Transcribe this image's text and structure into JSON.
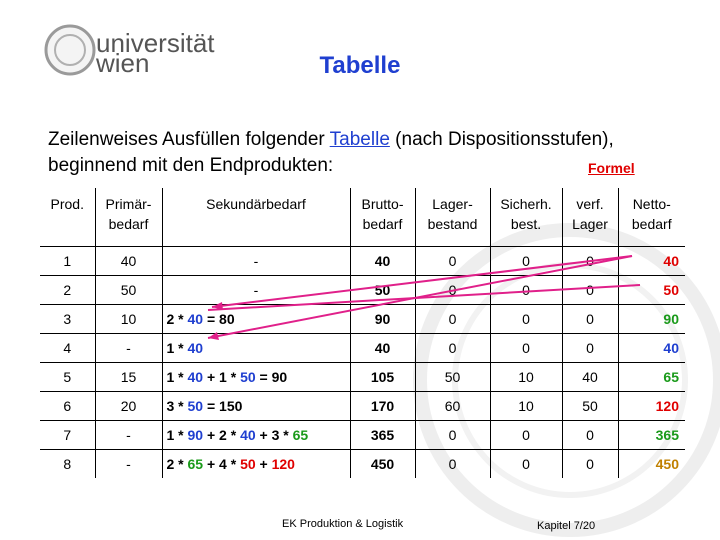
{
  "logo": {
    "line1": "universität",
    "line2": "wien"
  },
  "header": {
    "title": "Tabelle"
  },
  "intro": {
    "before_link": "Zeilenweises Ausfüllen folgender ",
    "link": "Tabelle",
    "after_link": " (nach Dispositionsstufen),",
    "line2": "beginnend mit den Endprodukten:",
    "formula_link": "Formel"
  },
  "table": {
    "header": [
      "Prod.",
      "Primär-\nbedarf",
      "Sekundärbedarf",
      "Brutto-\nbedarf",
      "Lager-\nbestand",
      "Sicherh.\nbest.",
      "verf.\nLager",
      "Netto-\nbedarf"
    ],
    "rows": [
      [
        "1",
        "40",
        "-",
        "40",
        "0",
        "0",
        "0",
        {
          "text": "40",
          "color": "#e00000"
        }
      ],
      [
        "2",
        "50",
        "-",
        "50",
        "0",
        "0",
        "0",
        {
          "text": "50",
          "color": "#e00000"
        }
      ],
      [
        "3",
        "10",
        [
          {
            "text": "2 * ",
            "color": "#000000"
          },
          {
            "text": "40",
            "color": "#1f3fd0"
          },
          {
            "text": " = 80",
            "color": "#000000"
          }
        ],
        "90",
        "0",
        "0",
        "0",
        {
          "text": "90",
          "color": "#1a9a1a"
        }
      ],
      [
        "4",
        "-",
        [
          {
            "text": "1 * ",
            "color": "#000000"
          },
          {
            "text": "40",
            "color": "#1f3fd0"
          }
        ],
        "40",
        "0",
        "0",
        "0",
        {
          "text": "40",
          "color": "#1f3fd0"
        }
      ],
      [
        "5",
        "15",
        [
          {
            "text": "1 * ",
            "color": "#000000"
          },
          {
            "text": "40",
            "color": "#1f3fd0"
          },
          {
            "text": " + 1 * ",
            "color": "#000000"
          },
          {
            "text": "50",
            "color": "#1f3fd0"
          },
          {
            "text": " = 90",
            "color": "#000000"
          }
        ],
        "105",
        "50",
        "10",
        "40",
        {
          "text": "65",
          "color": "#1a9a1a"
        }
      ],
      [
        "6",
        "20",
        [
          {
            "text": "3 * ",
            "color": "#000000"
          },
          {
            "text": "50",
            "color": "#1f3fd0"
          },
          {
            "text": " = 150",
            "color": "#000000"
          }
        ],
        "170",
        "60",
        "10",
        "50",
        {
          "text": "120",
          "color": "#e00000"
        }
      ],
      [
        "7",
        "-",
        [
          {
            "text": "1 * ",
            "color": "#000000"
          },
          {
            "text": "90",
            "color": "#1f3fd0"
          },
          {
            "text": " + 2 * ",
            "color": "#000000"
          },
          {
            "text": "40",
            "color": "#1f3fd0"
          },
          {
            "text": " + 3 * ",
            "color": "#000000"
          },
          {
            "text": "65",
            "color": "#1a9a1a"
          }
        ],
        "365",
        "0",
        "0",
        "0",
        {
          "text": "365",
          "color": "#1a9a1a"
        }
      ],
      [
        "8",
        "-",
        [
          {
            "text": "2 * ",
            "color": "#000000"
          },
          {
            "text": "65",
            "color": "#1a9a1a"
          },
          {
            "text": " + 4 * ",
            "color": "#000000"
          },
          {
            "text": "50",
            "color": "#e00000"
          },
          {
            "text": " + ",
            "color": "#000000"
          },
          {
            "text": "120",
            "color": "#e00000"
          }
        ],
        "450",
        "0",
        "0",
        "0",
        {
          "text": "450",
          "color": "#c08000"
        }
      ]
    ]
  },
  "footer": {
    "center": "EK Produktion & Logistik",
    "page": "Kapitel 7/20"
  }
}
